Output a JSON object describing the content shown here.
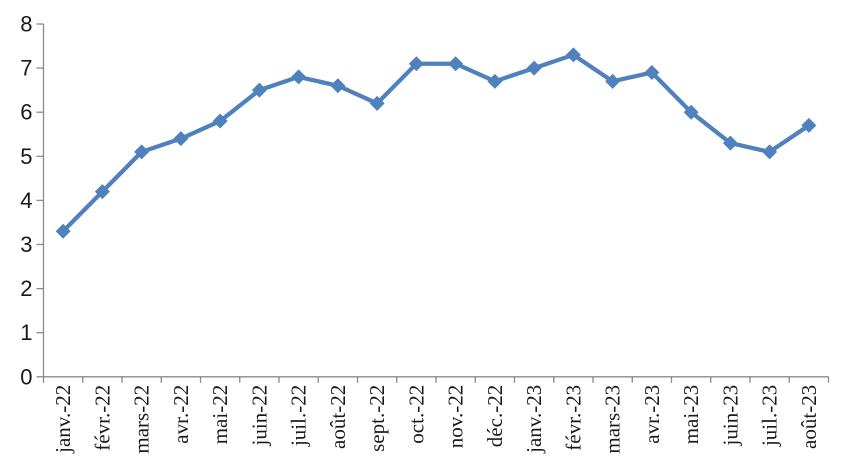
{
  "chart_data": {
    "type": "line",
    "title": "",
    "xlabel": "",
    "ylabel": "",
    "categories": [
      "janv.-22",
      "févr.-22",
      "mars-22",
      "avr.-22",
      "mai-22",
      "juin-22",
      "juil.-22",
      "août-22",
      "sept.-22",
      "oct.-22",
      "nov.-22",
      "déc.-22",
      "janv.-23",
      "févr.-23",
      "mars-23",
      "avr.-23",
      "mai-23",
      "juin-23",
      "juil.-23",
      "août-23"
    ],
    "series": [
      {
        "name": "",
        "values": [
          3.3,
          4.2,
          5.1,
          5.4,
          5.8,
          6.5,
          6.8,
          6.6,
          6.2,
          7.1,
          7.1,
          6.7,
          7.0,
          7.3,
          6.7,
          6.9,
          6.0,
          5.3,
          5.1,
          5.7
        ]
      }
    ],
    "ylim": [
      0,
      8
    ],
    "ytick_step": 1,
    "ytick_labels": [
      "0",
      "1",
      "2",
      "3",
      "4",
      "5",
      "6",
      "7",
      "8"
    ],
    "grid": false,
    "legend_position": "none",
    "marker": "diamond",
    "x_label_rotation": -90,
    "colors": {
      "series": "#4F81BD",
      "axis": "#898989",
      "tick": "#898989",
      "label_text": "#1a1a1a",
      "background": "#ffffff"
    }
  }
}
